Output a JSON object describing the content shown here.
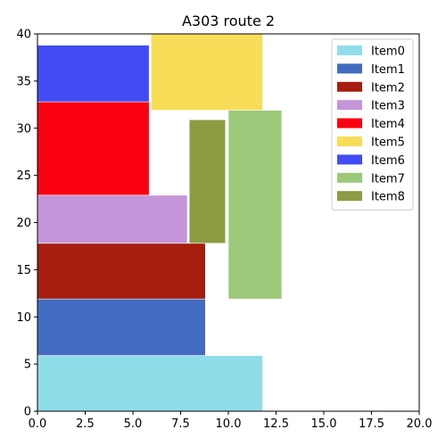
{
  "chart_data": {
    "type": "bar",
    "title": "A303 route 2",
    "xlabel": "",
    "ylabel": "",
    "xlim": [
      0,
      20
    ],
    "ylim": [
      0,
      40
    ],
    "xticks": [
      "0.0",
      "2.5",
      "5.0",
      "7.5",
      "10.0",
      "12.5",
      "15.0",
      "17.5",
      "20.0"
    ],
    "yticks": [
      "0",
      "5",
      "10",
      "15",
      "20",
      "25",
      "30",
      "35",
      "40"
    ],
    "grid": false,
    "legend_position": "top-right",
    "items": [
      {
        "name": "Item0",
        "x0": 0,
        "x1": 11.8,
        "y0": 0,
        "y1": 5.9,
        "color": "#8fdde9"
      },
      {
        "name": "Item1",
        "x0": 0,
        "x1": 8.8,
        "y0": 5.9,
        "y1": 11.9,
        "color": "#426cc2"
      },
      {
        "name": "Item2",
        "x0": 0,
        "x1": 8.8,
        "y0": 11.9,
        "y1": 17.8,
        "color": "#a81e0e"
      },
      {
        "name": "Item3",
        "x0": 0,
        "x1": 7.85,
        "y0": 17.8,
        "y1": 22.9,
        "color": "#c495d8"
      },
      {
        "name": "Item4",
        "x0": 0,
        "x1": 5.85,
        "y0": 22.9,
        "y1": 32.8,
        "color": "#fa0011"
      },
      {
        "name": "Item5",
        "x0": 5.95,
        "x1": 11.8,
        "y0": 31.9,
        "y1": 40,
        "color": "#f7dd58"
      },
      {
        "name": "Item6",
        "x0": 0,
        "x1": 5.85,
        "y0": 32.8,
        "y1": 38.8,
        "color": "#434cf2"
      },
      {
        "name": "Item7",
        "x0": 10,
        "x1": 12.8,
        "y0": 11.9,
        "y1": 31.9,
        "color": "#9cc97a"
      },
      {
        "name": "Item8",
        "x0": 7.95,
        "x1": 9.85,
        "y0": 17.8,
        "y1": 30.9,
        "color": "#8d9b42"
      }
    ]
  }
}
